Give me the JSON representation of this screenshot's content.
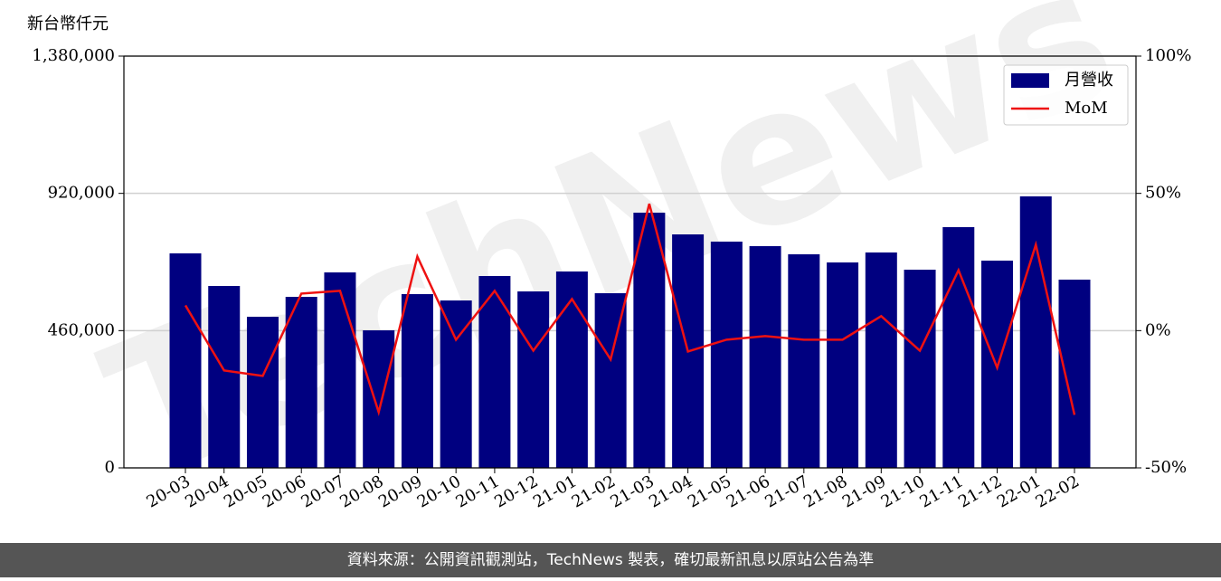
{
  "chart_data": {
    "type": "bar_line",
    "y_axis_label": "新台幣仟元",
    "categories": [
      "20-03",
      "20-04",
      "20-05",
      "20-06",
      "20-07",
      "20-08",
      "20-09",
      "20-10",
      "20-11",
      "20-12",
      "21-01",
      "21-02",
      "21-03",
      "21-04",
      "21-05",
      "21-06",
      "21-07",
      "21-08",
      "21-09",
      "21-10",
      "21-11",
      "21-12",
      "22-01",
      "22-02"
    ],
    "series": [
      {
        "name": "月營收",
        "color": "#000080",
        "type": "bar",
        "values": [
          719000,
          609600,
          506500,
          573200,
          655100,
          461000,
          582300,
          561100,
          643000,
          591400,
          658200,
          585400,
          855300,
          782500,
          758300,
          743100,
          715800,
          688500,
          721900,
          664200,
          806800,
          694600,
          909900,
          630900
        ]
      },
      {
        "name": "MoM",
        "color": "#ee1111",
        "type": "line",
        "axis": "y2",
        "values": [
          9.2,
          -14.5,
          -16.5,
          13.5,
          14.5,
          -29.7,
          27,
          -3.3,
          14.5,
          -7.3,
          11.5,
          -10.5,
          46.2,
          -7.6,
          -3.3,
          -2,
          -3.3,
          -3.3,
          5.3,
          -7.3,
          22,
          -13.5,
          31.3,
          -30.7
        ]
      }
    ],
    "ylim": [
      0,
      1380000
    ],
    "yticks": [
      0,
      {
        "value": 460000,
        "label": "460,000"
      },
      {
        "value": 920000,
        "label": "920,000"
      },
      {
        "value": 1380000,
        "label": "1,380,000"
      }
    ],
    "y2lim": [
      -50,
      100
    ],
    "y2ticks": [
      {
        "value": -50,
        "label": "-50%"
      },
      {
        "value": 0,
        "label": "0%"
      },
      {
        "value": 50,
        "label": "50%"
      },
      {
        "value": 100,
        "label": "100%"
      }
    ],
    "grid": true,
    "legend": "upper right",
    "watermark": "TechNews",
    "footer": "資料來源：公開資訊觀測站，TechNews 製表，確切最新訊息以原站公告為準"
  }
}
